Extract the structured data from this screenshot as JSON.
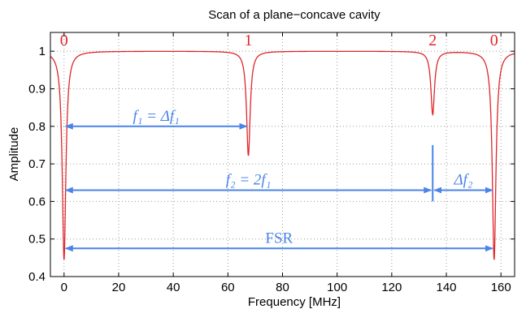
{
  "chart_data": {
    "type": "line",
    "title": "Scan of a plane−concave cavity",
    "xlabel": "Frequency [MHz]",
    "ylabel": "Amplitude",
    "xlim": [
      -5,
      165
    ],
    "ylim": [
      0.4,
      1.05
    ],
    "xticks": [
      0,
      20,
      40,
      60,
      80,
      100,
      120,
      140,
      160
    ],
    "yticks": [
      0.4,
      0.5,
      0.6,
      0.7,
      0.8,
      0.9,
      1
    ],
    "grid": true,
    "colors": {
      "curve": "#e0262a",
      "annotation": "#4a84e8",
      "mode_label": "#e0262a"
    },
    "series": [
      {
        "resonances": [
          {
            "center": 0,
            "min": 0.445,
            "width": 0.8
          },
          {
            "center": 67.5,
            "min": 0.722,
            "width": 0.8
          },
          {
            "center": 135,
            "min": 0.832,
            "width": 0.8
          },
          {
            "center": 157.5,
            "min": 0.445,
            "width": 0.8
          }
        ]
      }
    ],
    "mode_labels": [
      {
        "text": "0",
        "x": 0
      },
      {
        "text": "1",
        "x": 67.5
      },
      {
        "text": "2",
        "x": 135
      },
      {
        "text": "0",
        "x": 157.5
      }
    ],
    "annotations": [
      {
        "id": "f1",
        "x1": 0,
        "x2": 67.5,
        "y": 0.8,
        "text": "f₁ = Δf₁"
      },
      {
        "id": "f2",
        "x1": 0,
        "x2": 135,
        "y": 0.63,
        "text": "f₂ = 2f₁"
      },
      {
        "id": "df2",
        "x1": 135,
        "x2": 157.5,
        "y": 0.63,
        "text": "Δf₂"
      },
      {
        "id": "fsr",
        "x1": 0,
        "x2": 157.5,
        "y": 0.475,
        "text": "FSR"
      }
    ],
    "marker_line": {
      "x": 135,
      "y1": 0.6,
      "y2": 0.75
    }
  }
}
